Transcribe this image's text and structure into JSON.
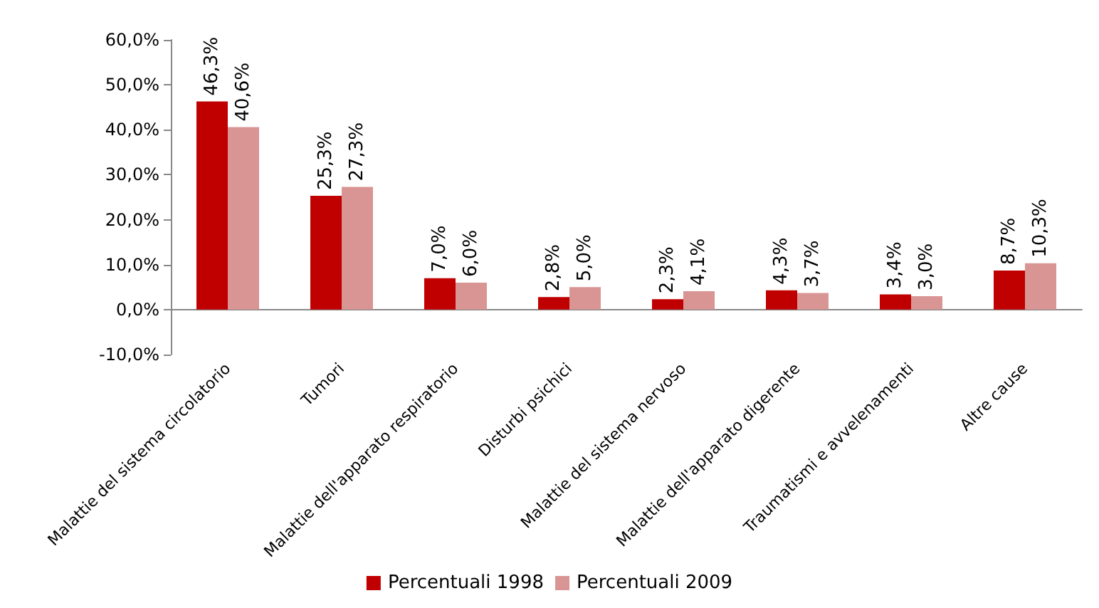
{
  "chart_data": {
    "type": "bar",
    "categories": [
      "Malattie del sistema circolatorio",
      "Tumori",
      "Malattie dell'apparato respiratorio",
      "Disturbi psichici",
      "Malattie del sistema nervoso",
      "Malattie dell'apparato digerente",
      "Traumatismi e avvelenamenti",
      "Altre cause"
    ],
    "series": [
      {
        "name": "Percentuali 1998",
        "color": "#c00000",
        "values": [
          46.3,
          25.3,
          7.0,
          2.8,
          2.3,
          4.3,
          3.4,
          8.7
        ],
        "value_labels": [
          "46,3%",
          "25,3%",
          "7,0%",
          "2,8%",
          "2,3%",
          "4,3%",
          "3,4%",
          "8,7%"
        ]
      },
      {
        "name": "Percentuali 2009",
        "color": "#d99594",
        "values": [
          40.6,
          27.3,
          6.0,
          5.0,
          4.1,
          3.7,
          3.0,
          10.3
        ],
        "value_labels": [
          "40,6%",
          "27,3%",
          "6,0%",
          "5,0%",
          "4,1%",
          "3,7%",
          "3,0%",
          "10,3%"
        ]
      }
    ],
    "ylim": [
      -10,
      60
    ],
    "yticks": [
      {
        "value": -10,
        "label": "-10,0%"
      },
      {
        "value": 0,
        "label": "0,0%"
      },
      {
        "value": 10,
        "label": "10,0%"
      },
      {
        "value": 20,
        "label": "20,0%"
      },
      {
        "value": 30,
        "label": "30,0%"
      },
      {
        "value": 40,
        "label": "40,0%"
      },
      {
        "value": 50,
        "label": "50,0%"
      },
      {
        "value": 60,
        "label": "60,0%"
      }
    ],
    "legend": "bottom"
  }
}
